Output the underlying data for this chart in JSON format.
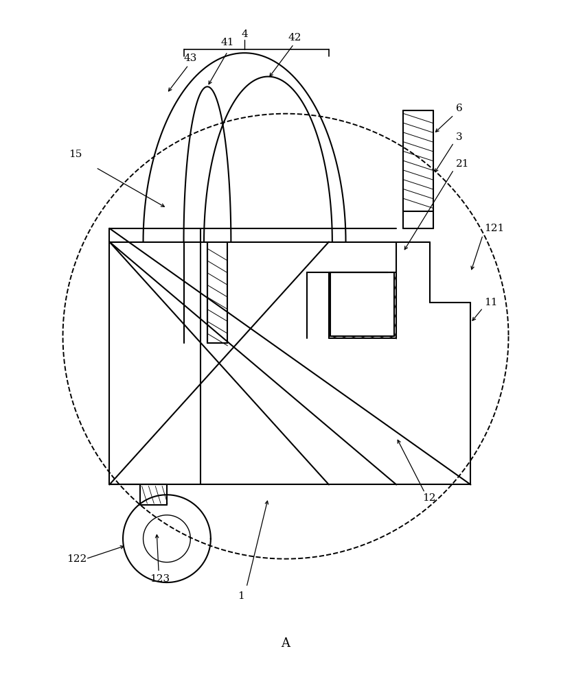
{
  "bg_color": "#ffffff",
  "line_color": "#000000",
  "figsize": [
    8.33,
    10.0
  ],
  "dpi": 100
}
